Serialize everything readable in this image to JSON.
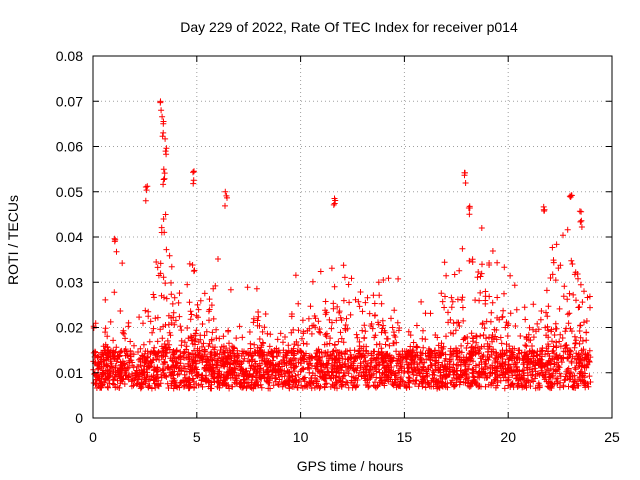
{
  "chart_data": {
    "type": "scatter",
    "title": "Day 229 of 2022, Rate Of TEC Index for receiver p014",
    "xlabel": "GPS time / hours",
    "ylabel": "ROTI / TECUs",
    "xlim": [
      0,
      25
    ],
    "ylim": [
      0,
      0.08
    ],
    "x_ticks": [
      "0",
      "5",
      "10",
      "15",
      "20",
      "25"
    ],
    "y_ticks": [
      "0",
      "0.01",
      "0.02",
      "0.03",
      "0.04",
      "0.05",
      "0.06",
      "0.07",
      "0.08"
    ],
    "grid": true,
    "marker": "+",
    "color": "#ff0000",
    "point_count_approx": 12000,
    "baseline_band": [
      0.005,
      0.02
    ],
    "notable_peaks": [
      {
        "x": 3.3,
        "y": 0.07
      },
      {
        "x": 3.4,
        "y": 0.066
      },
      {
        "x": 3.5,
        "y": 0.062
      },
      {
        "x": 3.4,
        "y": 0.056
      },
      {
        "x": 4.8,
        "y": 0.055
      },
      {
        "x": 6.4,
        "y": 0.05
      },
      {
        "x": 17.9,
        "y": 0.055
      },
      {
        "x": 18.1,
        "y": 0.047
      },
      {
        "x": 11.6,
        "y": 0.049
      },
      {
        "x": 23.0,
        "y": 0.051
      },
      {
        "x": 21.7,
        "y": 0.049
      },
      {
        "x": 2.6,
        "y": 0.052
      },
      {
        "x": 1.1,
        "y": 0.04
      },
      {
        "x": 23.5,
        "y": 0.046
      }
    ]
  }
}
